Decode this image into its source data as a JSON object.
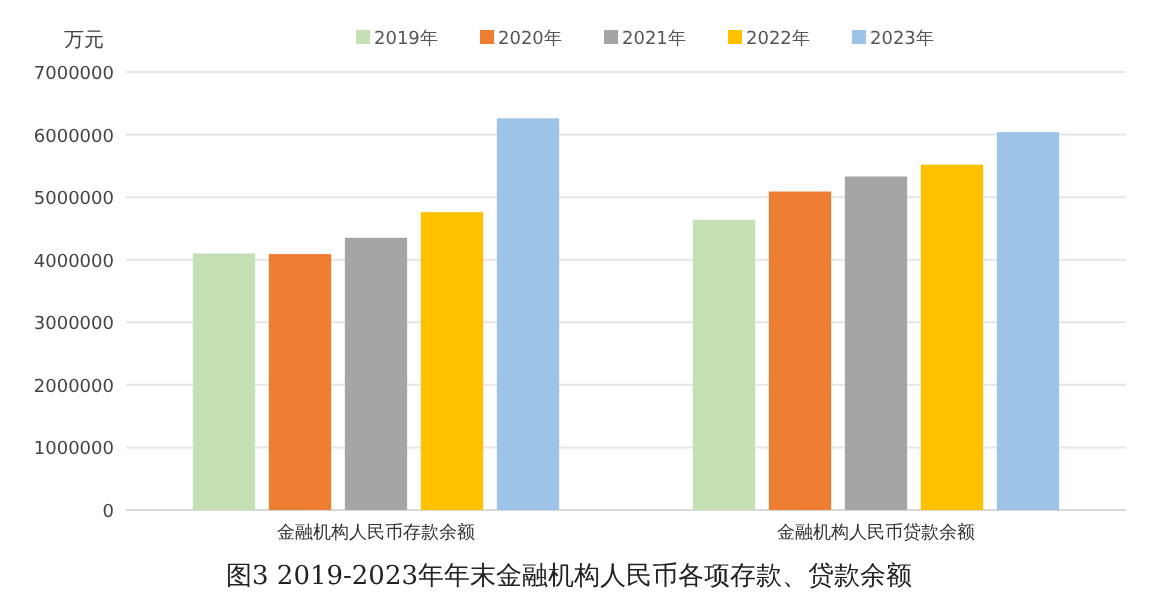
{
  "chart_data": {
    "type": "bar",
    "title": "图3 2019-2023年年末金融机构人民币各项存款、贷款余额",
    "ylabel": "万元",
    "categories": [
      "金融机构人民币存款余额",
      "金融机构人民币贷款余额"
    ],
    "series": [
      {
        "name": "2019年",
        "color": "#c5e0b4",
        "values": [
          4100000,
          4640000
        ]
      },
      {
        "name": "2020年",
        "color": "#ed7d31",
        "values": [
          4090000,
          5090000
        ]
      },
      {
        "name": "2021年",
        "color": "#a5a5a5",
        "values": [
          4350000,
          5330000
        ]
      },
      {
        "name": "2022年",
        "color": "#ffc000",
        "values": [
          4760000,
          5520000
        ]
      },
      {
        "name": "2023年",
        "color": "#9dc3e6",
        "values": [
          6260000,
          6040000
        ]
      }
    ],
    "ylim": [
      0,
      7000000
    ],
    "yticks": [
      0,
      1000000,
      2000000,
      3000000,
      4000000,
      5000000,
      6000000,
      7000000
    ],
    "grid": "y",
    "legend": "top"
  }
}
